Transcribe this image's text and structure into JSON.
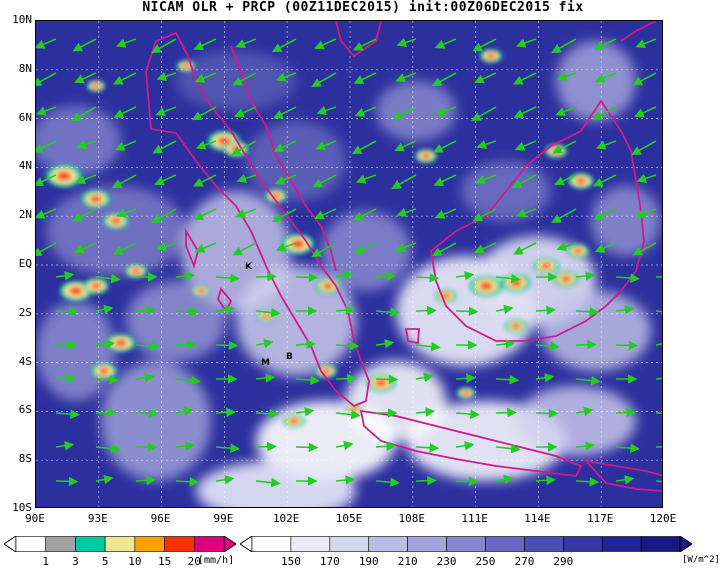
{
  "title": "NICAM OLR + PRCP (00Z11DEC2015) init:00Z06DEC2015 fix",
  "lat_ticks": [
    "10N",
    "8N",
    "6N",
    "4N",
    "2N",
    "EQ",
    "2S",
    "4S",
    "6S",
    "8S",
    "10S"
  ],
  "lon_ticks": [
    "90E",
    "93E",
    "96E",
    "99E",
    "102E",
    "105E",
    "108E",
    "111E",
    "114E",
    "117E",
    "120E"
  ],
  "map_extent": {
    "lon": [
      90,
      120
    ],
    "lat": [
      -10,
      10
    ]
  },
  "city_labels": [
    "K",
    "M",
    "B"
  ],
  "precip_legend": {
    "levels": [
      "1",
      "3",
      "5",
      "10",
      "15",
      "20"
    ],
    "unit": "[mm/h]",
    "colors": [
      "#ffffff",
      "#a0a0a0",
      "#00c8a0",
      "#f0e890",
      "#ffa000",
      "#ff3000",
      "#e0007f"
    ]
  },
  "olr_legend": {
    "levels": [
      "150",
      "170",
      "190",
      "210",
      "230",
      "250",
      "270",
      "290"
    ],
    "unit": "[W/m^2]",
    "colors": [
      "#ffffff",
      "#eaeaf7",
      "#d6d6ef",
      "#bcbde6",
      "#a3a4db",
      "#8586cf",
      "#6669c2",
      "#4c4fb2",
      "#3538a4",
      "#222596",
      "#171a85"
    ]
  },
  "colors": {
    "coast": "#d21a8a",
    "wind": "#22cc22"
  }
}
